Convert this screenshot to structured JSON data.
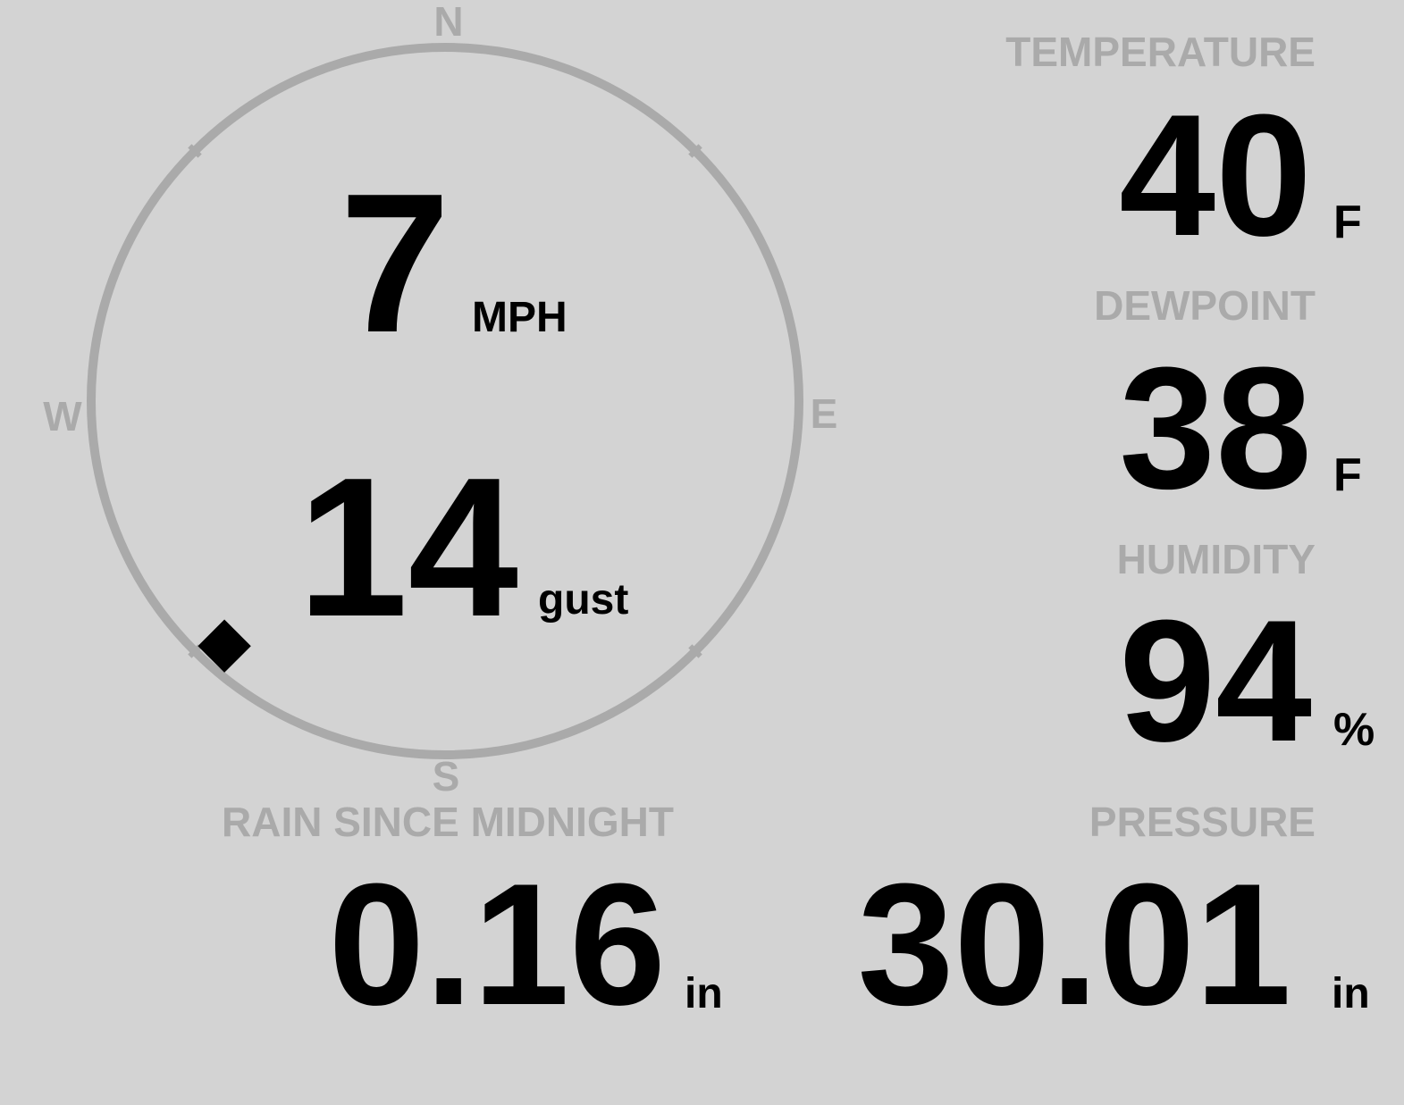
{
  "wind": {
    "speed": "7",
    "speed_unit": "MPH",
    "gust": "14",
    "gust_unit": "gust",
    "direction_degrees": 222,
    "compass": {
      "n": "N",
      "e": "E",
      "s": "S",
      "w": "W"
    }
  },
  "temperature": {
    "label": "TEMPERATURE",
    "value": "40",
    "unit": "F"
  },
  "dewpoint": {
    "label": "DEWPOINT",
    "value": "38",
    "unit": "F"
  },
  "humidity": {
    "label": "HUMIDITY",
    "value": "94",
    "unit": "%"
  },
  "rain": {
    "label": "RAIN SINCE MIDNIGHT",
    "value": "0.16",
    "unit": "in"
  },
  "pressure": {
    "label": "PRESSURE",
    "value": "30.01",
    "unit": "in"
  },
  "colors": {
    "background": "#d3d3d3",
    "label": "#aaaaaa",
    "value": "#000000"
  }
}
